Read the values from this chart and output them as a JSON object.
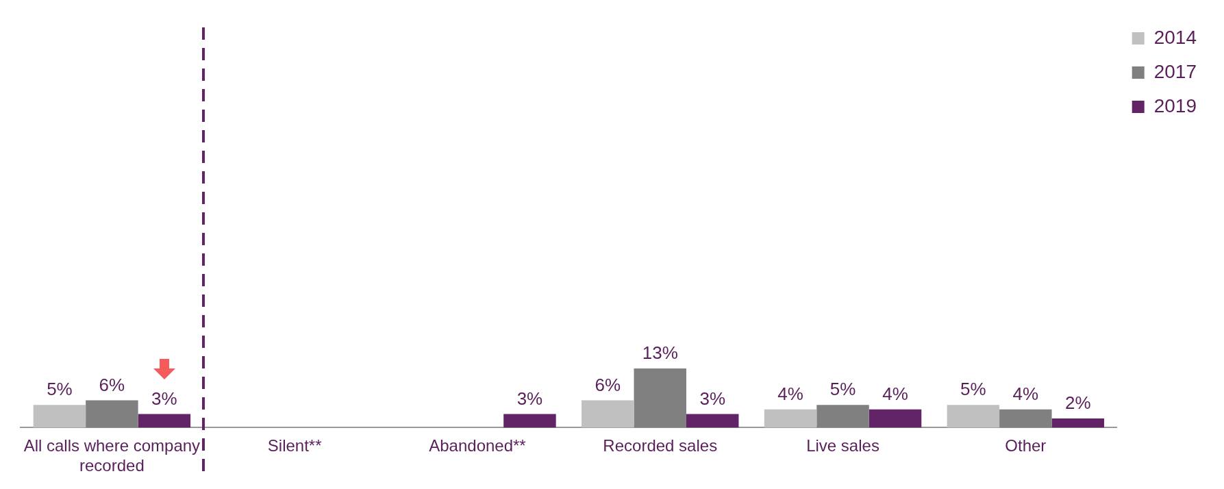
{
  "chart_data": {
    "type": "bar",
    "categories": [
      "All calls where company recorded",
      "Silent**",
      "Abandoned**",
      "Recorded sales",
      "Live sales",
      "Other"
    ],
    "series": [
      {
        "name": "2014",
        "color": "#c0c0c0",
        "values": [
          5,
          null,
          null,
          6,
          4,
          5
        ],
        "value_labels": [
          "5%",
          null,
          null,
          "6%",
          "4%",
          "5%"
        ]
      },
      {
        "name": "2017",
        "color": "#808080",
        "values": [
          6,
          null,
          null,
          13,
          5,
          4
        ],
        "value_labels": [
          "6%",
          null,
          null,
          "13%",
          "5%",
          "4%"
        ]
      },
      {
        "name": "2019",
        "color": "#622466",
        "values": [
          3,
          null,
          3,
          3,
          4,
          2
        ],
        "value_labels": [
          "3%",
          null,
          "3%",
          "3%",
          "4%",
          "2%"
        ]
      }
    ],
    "legend": "top right",
    "grid": false,
    "tick_labels": "x"
  }
}
